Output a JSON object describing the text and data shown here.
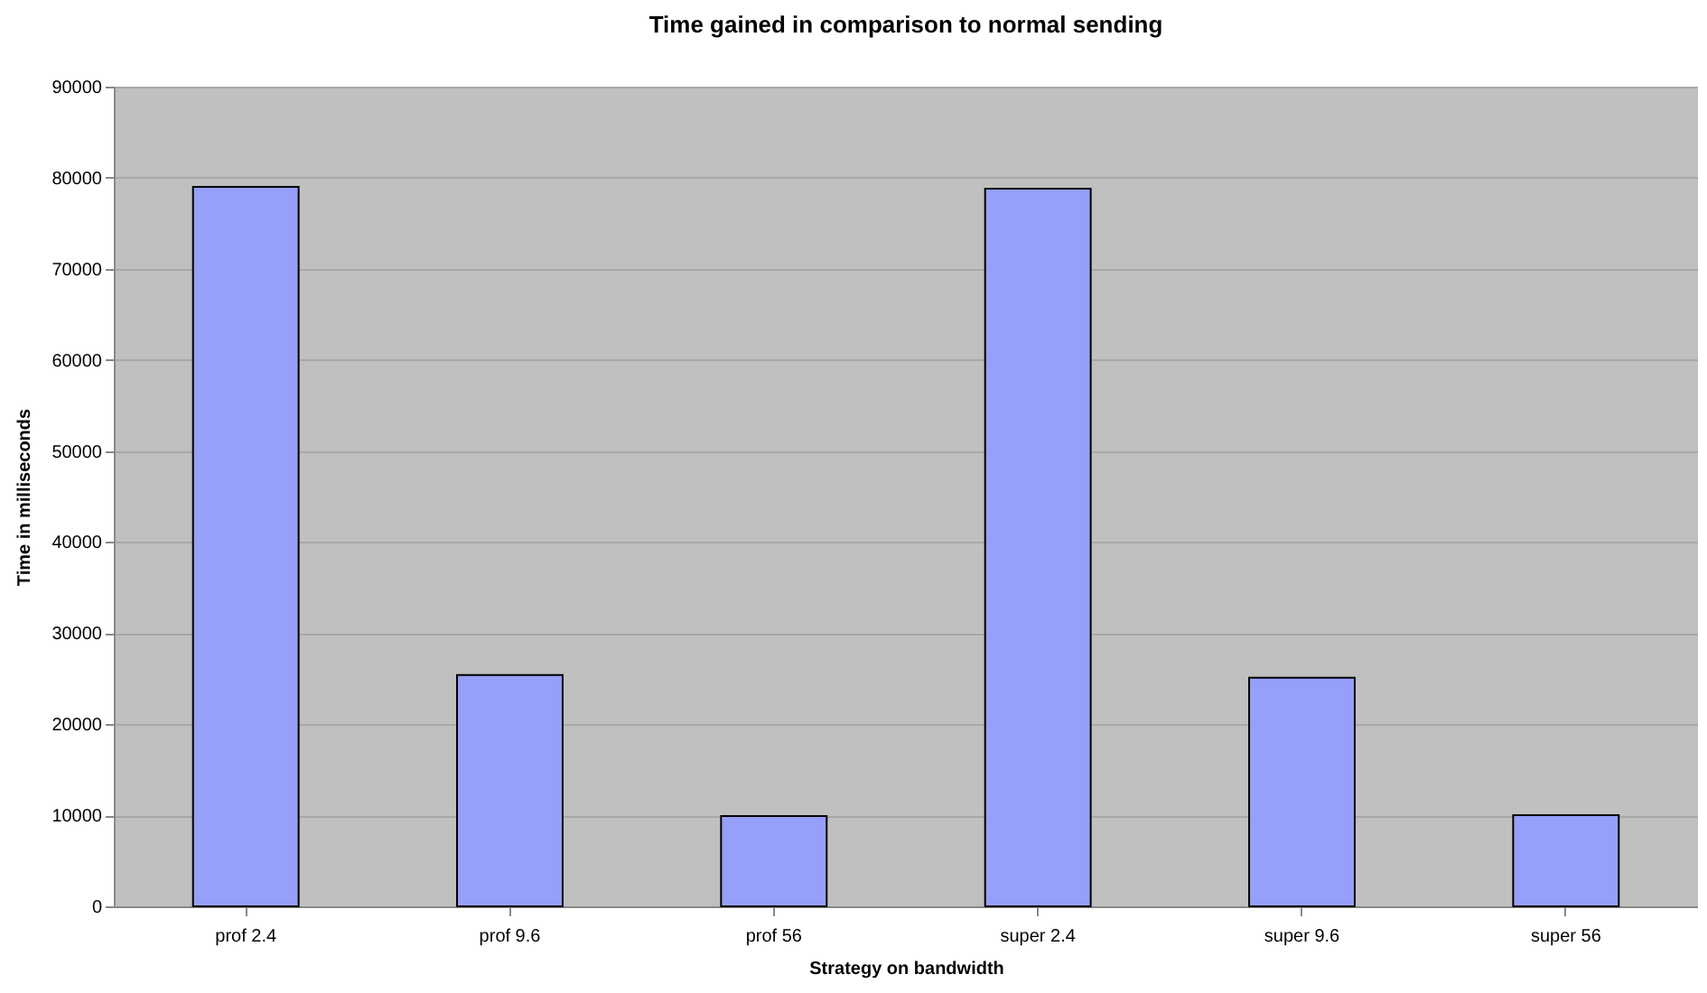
{
  "chart_data": {
    "type": "bar",
    "title": "Time gained in comparison to normal sending",
    "xlabel": "Strategy on bandwidth",
    "ylabel": "Time in milliseconds",
    "categories": [
      "prof 2.4",
      "prof 9.6",
      "prof 56",
      "super 2.4",
      "super 9.6",
      "super 56"
    ],
    "values": [
      79000,
      25400,
      9900,
      78800,
      25100,
      10000
    ],
    "color": "#969ffa",
    "ylim": [
      0,
      90000
    ],
    "yticks": [
      0,
      10000,
      20000,
      30000,
      40000,
      50000,
      60000,
      70000,
      80000,
      90000
    ],
    "grid": "y"
  }
}
